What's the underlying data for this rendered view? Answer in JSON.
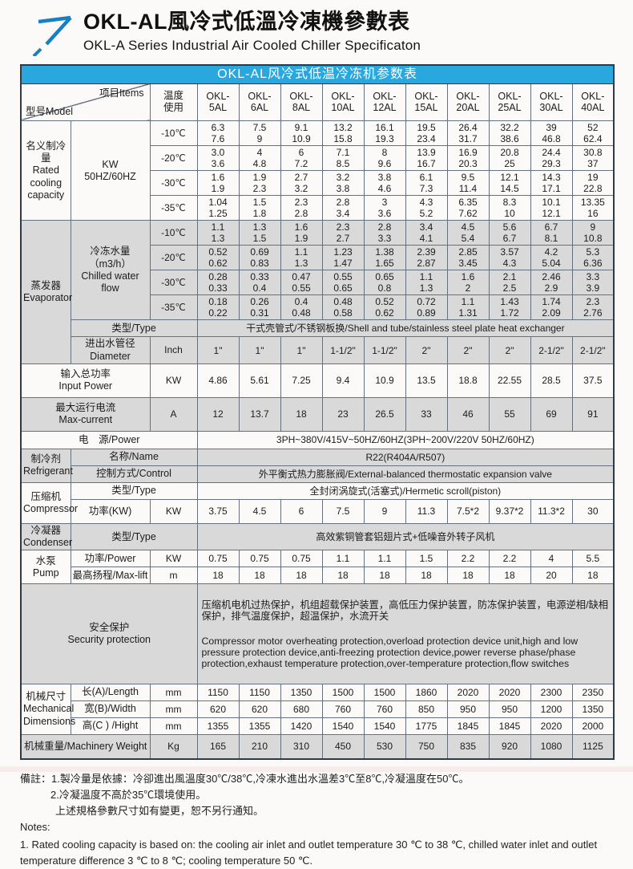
{
  "colors": {
    "accent_blue": "#29a7df",
    "arrow_blue": "#1580c4",
    "shade_gray": "#d9d9d9",
    "border": "#667180"
  },
  "page": {
    "title_zh": "OKL-AL風冷式低溫冷凍機參數表",
    "title_en": "OKL-A Series Industrial Air Cooled Chiller Specificaton"
  },
  "table": {
    "title": "OKL-AL风冷式低温冷冻机参数表",
    "header": {
      "model_label": "型号Model",
      "items_label": "项目Items",
      "temp_label": "温度\n使用",
      "models": [
        "OKL-|5AL",
        "OKL-|6AL",
        "OKL-|8AL",
        "OKL-|10AL",
        "OKL-|12AL",
        "OKL-|15AL",
        "OKL-|20AL",
        "OKL-|25AL",
        "OKL-|30AL",
        "OKL-|40AL"
      ]
    },
    "cooling": {
      "label": "名义制冷量\nRated\ncooling\ncapacity",
      "unit": "KW\n50HZ/60HZ",
      "rows": [
        {
          "temp": "-10℃",
          "values": [
            "6.3|7.6",
            "7.5|9",
            "9.1|10.9",
            "13.2|15.8",
            "16.1|19.3",
            "19.5|23.4",
            "26.4|31.7",
            "32.2|38.6",
            "39|46.8",
            "52|62.4"
          ]
        },
        {
          "temp": "-20℃",
          "values": [
            "3.0|3.6",
            "4|4.8",
            "6|7.2",
            "7.1|8.5",
            "8|9.6",
            "13.9|16.7",
            "16.9|20.3",
            "20.8|25",
            "24.4|29.3",
            "30.8|37"
          ]
        },
        {
          "temp": "-30℃",
          "values": [
            "1.6|1.9",
            "1.9|2.3",
            "2.7|3.2",
            "3.2|3.8",
            "3.8|4.6",
            "6.1|7.3",
            "9.5|11.4",
            "12.1|14.5",
            "14.3|17.1",
            "19|22.8"
          ]
        },
        {
          "temp": "-35℃",
          "values": [
            "1.04|1.25",
            "1.5|1.8",
            "2.3|2.8",
            "2.8|3.4",
            "3|3.6",
            "4.3|5.2",
            "6.35|7.62",
            "8.3|10",
            "10.1|12.1",
            "13.35|16"
          ]
        }
      ]
    },
    "evaporator": {
      "label": "蒸发器\nEvaporator",
      "flow_label": "冷冻水量（m3/h）\nChilled water flow",
      "rows": [
        {
          "temp": "-10℃",
          "values": [
            "1.1|1.3",
            "1.3|1.5",
            "1.6|1.9",
            "2.3|2.7",
            "2.8|3.3",
            "3.4|4.1",
            "4.5|5.4",
            "5.6|6.7",
            "6.7|8.1",
            "9|10.8"
          ]
        },
        {
          "temp": "-20℃",
          "values": [
            "0.52|0.62",
            "0.69|0.83",
            "1.1|1.3",
            "1.23|1.47",
            "1.38|1.65",
            "2.39|2.87",
            "2.85|3.45",
            "3.57|4.3",
            "4.2|5.04",
            "5.3|6.36"
          ]
        },
        {
          "temp": "-30℃",
          "values": [
            "0.28|0.33",
            "0.33|0.4",
            "0.47|0.55",
            "0.55|0.65",
            "0.65|0.8",
            "1.1|1.3",
            "1.6|2",
            "2.1|2.5",
            "2.46|2.9",
            "3.3|3.9"
          ]
        },
        {
          "temp": "-35℃",
          "values": [
            "0.18|0.22",
            "0.26|0.31",
            "0.4|0.48",
            "0.48|0.58",
            "0.52|0.62",
            "0.72|0.89",
            "1.1|1.31",
            "1.43|1.72",
            "1.74|2.09",
            "2.3|2.76"
          ]
        }
      ],
      "type_label": "类型/Type",
      "type_value": "干式壳管式/不锈钢板换/Shell and tube/stainless steel plate heat exchanger",
      "diameter_label": "进出水管径\nDiameter",
      "diameter_unit": "Inch",
      "diameter_values": [
        "1\"",
        "1\"",
        "1\"",
        "1-1/2\"",
        "1-1/2\"",
        "2\"",
        "2\"",
        "2\"",
        "2-1/2\"",
        "2-1/2\""
      ]
    },
    "input_power": {
      "label": "输入总功率\nInput Power",
      "unit": "KW",
      "values": [
        "4.86",
        "5.61",
        "7.25",
        "9.4",
        "10.9",
        "13.5",
        "18.8",
        "22.55",
        "28.5",
        "37.5"
      ]
    },
    "max_current": {
      "label": "最大运行电流\nMax-current",
      "unit": "A",
      "values": [
        "12",
        "13.7",
        "18",
        "23",
        "26.5",
        "33",
        "46",
        "55",
        "69",
        "91"
      ]
    },
    "power_supply": {
      "label": "电　源/Power",
      "value": "3PH~380V/415V~50HZ/60HZ(3PH~200V/220V  50HZ/60HZ)"
    },
    "refrigerant": {
      "label": "制冷剂\nRefrigerant",
      "name_label": "名称/Name",
      "name_value": "R22(R404A/R507)",
      "control_label": "控制方式/Control",
      "control_value": "外平衡式热力膨胀阀/External-balanced thermostatic expansion valve"
    },
    "compressor": {
      "label": "压缩机\nCompressor",
      "type_label": "类型/Type",
      "type_value": "全封闭涡旋式(活塞式)/Hermetic scroll(piston)",
      "power_label": "功率(KW)",
      "power_unit": "KW",
      "power_values": [
        "3.75",
        "4.5",
        "6",
        "7.5",
        "9",
        "11.3",
        "7.5*2",
        "9.37*2",
        "11.3*2",
        "30"
      ]
    },
    "condenser": {
      "label": "冷凝器\nCondenser",
      "type_label": "类型/Type",
      "type_value": "高效紫铜管套铝翅片式+低噪音外转子风机"
    },
    "pump": {
      "label": "水泵\nPump",
      "power_label": "功率/Power",
      "power_unit": "KW",
      "power_values": [
        "0.75",
        "0.75",
        "0.75",
        "1.1",
        "1.1",
        "1.5",
        "2.2",
        "2.2",
        "4",
        "5.5"
      ],
      "lift_label": "最高扬程/Max-lift",
      "lift_unit": "m",
      "lift_values": [
        "18",
        "18",
        "18",
        "18",
        "18",
        "18",
        "18",
        "18",
        "20",
        "18"
      ]
    },
    "security": {
      "label": "安全保护\nSecurity protection",
      "text_zh": "压缩机电机过热保护，机组超载保护装置，高低压力保护装置，防冻保护装置，电源逆相/缺相保护，排气温度保护，超温保护，水流开关",
      "text_en": " Compressor motor overheating protection,overload protection device unit,high and low pressure protection device,anti-freezing protection device,power reverse phase/phase protection,exhaust temperature protection,over-temperature protection,flow switches"
    },
    "dimensions": {
      "label": "机械尺寸\nMechanical\nDimensions",
      "rows": [
        {
          "label": "长(A)/Length",
          "unit": "mm",
          "values": [
            "1150",
            "1150",
            "1350",
            "1500",
            "1500",
            "1860",
            "2020",
            "2020",
            "2300",
            "2350"
          ]
        },
        {
          "label": "宽(B)/Width",
          "unit": "mm",
          "values": [
            "620",
            "620",
            "680",
            "760",
            "760",
            "850",
            "950",
            "950",
            "1200",
            "1350"
          ]
        },
        {
          "label": "高(C ) /Hight",
          "unit": "mm",
          "values": [
            "1355",
            "1355",
            "1420",
            "1540",
            "1540",
            "1775",
            "1845",
            "1845",
            "2020",
            "2000"
          ]
        }
      ]
    },
    "weight": {
      "label": "机械重量/Machinery Weight",
      "unit": "Kg",
      "values": [
        "165",
        "210",
        "310",
        "450",
        "530",
        "750",
        "835",
        "920",
        "1080",
        "1125"
      ]
    }
  },
  "notes": {
    "line1": "備註：1.製冷量是依據：冷卻進出風溫度30℃/38℃,冷凍水進出水溫差3℃至8℃,冷凝溫度在50℃。",
    "line2": "2.冷凝溫度不高於35℃環境使用。",
    "line3": "上述規格參數尺寸如有變更，恕不另行通知。",
    "line4": "Notes:",
    "line5": "1. Rated cooling capacity is based on: the cooling air inlet and outlet temperature 30 ℃ to 38 ℃, chilled water inlet and outlet temperature difference 3 ℃ to 8 ℃; cooling temperature 50 ℃."
  }
}
